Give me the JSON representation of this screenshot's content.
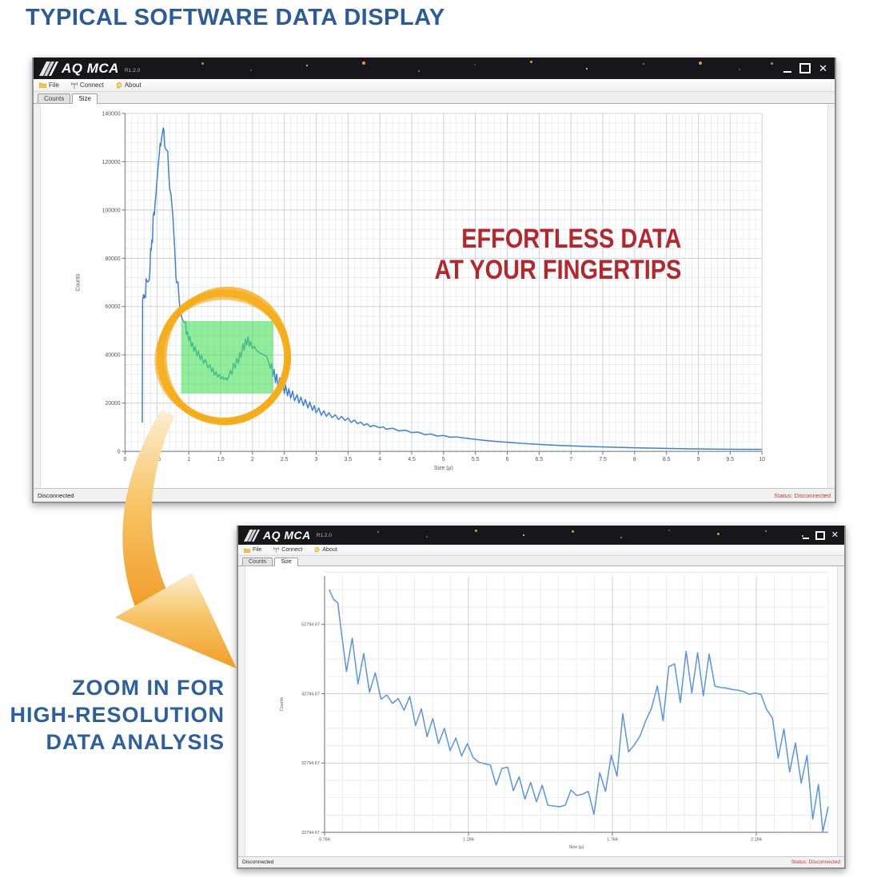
{
  "page": {
    "title": "TYPICAL SOFTWARE DATA DISPLAY",
    "title_color": "#2b5c99"
  },
  "annotations": {
    "slogan_line1": "EFFORTLESS DATA",
    "slogan_line2": "AT YOUR FINGERTIPS",
    "slogan_color": "#b3272d",
    "caption_line1": "ZOOM IN FOR",
    "caption_line2": "HIGH-RESOLUTION",
    "caption_line3": "DATA ANALYSIS",
    "caption_color": "#2d5f9e",
    "arrow_color": "#f09c26",
    "arrow_color_light": "#fcefd2",
    "status_color": "#c23a3a"
  },
  "window_main": {
    "app_name": "AQ MCA",
    "version": "R1.2.0",
    "menu": [
      {
        "label": "File"
      },
      {
        "label": "Connect"
      },
      {
        "label": "About"
      }
    ],
    "tabs": [
      {
        "label": "Counts"
      },
      {
        "label": "Size"
      }
    ],
    "status_left": "Disconnected",
    "status_right": "Status: Disconnected"
  },
  "window_zoom": {
    "app_name": "AQ MCA",
    "version": "R1.2.0",
    "menu": [
      {
        "label": "File"
      },
      {
        "label": "Connect"
      },
      {
        "label": "About"
      }
    ],
    "tabs": [
      {
        "label": "Counts"
      },
      {
        "label": "Size"
      }
    ],
    "status_left": "Disconnected",
    "status_right": "Status: Disconnected"
  },
  "chart_data": [
    {
      "id": "overview",
      "type": "line",
      "xlabel": "Size (μ)",
      "ylabel": "Counts",
      "xlim": [
        0,
        10
      ],
      "ylim": [
        0,
        140000
      ],
      "xtick_step": 0.5,
      "ytick_step": 20000,
      "x_minor": 0.1,
      "y_minor": 4000,
      "y_decimals": 0,
      "grid": true,
      "line_color": "#3f7fd4",
      "highlight_rect": {
        "x1": 0.88,
        "x2": 2.33,
        "y1": 24000,
        "y2": 54000,
        "color": "#4ee05e"
      },
      "circle": {
        "cx": 1.55,
        "cy": 39000,
        "rx": 1.0,
        "ry": 26500,
        "color": "#f6ac18"
      },
      "points": [
        [
          0.27,
          12000
        ],
        [
          0.275,
          63000
        ],
        [
          0.29,
          65000
        ],
        [
          0.3,
          63500
        ],
        [
          0.31,
          64500
        ],
        [
          0.32,
          63800
        ],
        [
          0.33,
          71500
        ],
        [
          0.34,
          70600
        ],
        [
          0.36,
          70200
        ],
        [
          0.38,
          71200
        ],
        [
          0.39,
          75000
        ],
        [
          0.4,
          84000
        ],
        [
          0.41,
          83200
        ],
        [
          0.42,
          87500
        ],
        [
          0.43,
          86500
        ],
        [
          0.44,
          97500
        ],
        [
          0.45,
          99000
        ],
        [
          0.46,
          98000
        ],
        [
          0.47,
          103000
        ],
        [
          0.48,
          105000
        ],
        [
          0.5,
          112000
        ],
        [
          0.52,
          118500
        ],
        [
          0.54,
          124000
        ],
        [
          0.55,
          127500
        ],
        [
          0.56,
          126500
        ],
        [
          0.57,
          129500
        ],
        [
          0.58,
          131000
        ],
        [
          0.6,
          134000
        ],
        [
          0.61,
          133000
        ],
        [
          0.62,
          127000
        ],
        [
          0.63,
          125500
        ],
        [
          0.65,
          124800
        ],
        [
          0.67,
          124200
        ],
        [
          0.68,
          118000
        ],
        [
          0.7,
          108500
        ],
        [
          0.72,
          106500
        ],
        [
          0.74,
          100500
        ],
        [
          0.75,
          97500
        ],
        [
          0.77,
          88000
        ],
        [
          0.78,
          83500
        ],
        [
          0.8,
          71500
        ],
        [
          0.81,
          69800
        ],
        [
          0.83,
          70200
        ],
        [
          0.85,
          62000
        ],
        [
          0.87,
          57500
        ],
        [
          0.9,
          54500
        ],
        [
          0.93,
          53500
        ],
        [
          0.95,
          53800
        ],
        [
          0.96,
          48500
        ],
        [
          0.98,
          49500
        ],
        [
          1.0,
          46000
        ],
        [
          1.02,
          47500
        ],
        [
          1.04,
          43500
        ],
        [
          1.06,
          45000
        ],
        [
          1.08,
          41500
        ],
        [
          1.1,
          43500
        ],
        [
          1.13,
          39500
        ],
        [
          1.15,
          41500
        ],
        [
          1.18,
          38000
        ],
        [
          1.2,
          40000
        ],
        [
          1.23,
          36500
        ],
        [
          1.26,
          38000
        ],
        [
          1.3,
          34500
        ],
        [
          1.33,
          36000
        ],
        [
          1.36,
          33000
        ],
        [
          1.38,
          34500
        ],
        [
          1.4,
          31500
        ],
        [
          1.43,
          33000
        ],
        [
          1.45,
          30800
        ],
        [
          1.48,
          32000
        ],
        [
          1.5,
          30000
        ],
        [
          1.53,
          31000
        ],
        [
          1.55,
          29800
        ],
        [
          1.58,
          30500
        ],
        [
          1.6,
          29500
        ],
        [
          1.63,
          31000
        ],
        [
          1.65,
          33500
        ],
        [
          1.68,
          32000
        ],
        [
          1.7,
          36500
        ],
        [
          1.73,
          34500
        ],
        [
          1.75,
          38500
        ],
        [
          1.78,
          36500
        ],
        [
          1.8,
          41000
        ],
        [
          1.82,
          39000
        ],
        [
          1.85,
          44500
        ],
        [
          1.87,
          42000
        ],
        [
          1.89,
          46500
        ],
        [
          1.91,
          44000
        ],
        [
          1.93,
          47500
        ],
        [
          1.95,
          43500
        ],
        [
          1.97,
          45500
        ],
        [
          2.0,
          42500
        ],
        [
          2.03,
          43500
        ],
        [
          2.06,
          42000
        ],
        [
          2.1,
          41000
        ],
        [
          2.14,
          40500
        ],
        [
          2.18,
          40000
        ],
        [
          2.22,
          39500
        ],
        [
          2.26,
          36500
        ],
        [
          2.28,
          34500
        ],
        [
          2.3,
          36500
        ],
        [
          2.32,
          31000
        ],
        [
          2.34,
          34000
        ],
        [
          2.36,
          28500
        ],
        [
          2.38,
          32000
        ],
        [
          2.4,
          26500
        ],
        [
          2.43,
          30500
        ],
        [
          2.45,
          25500
        ],
        [
          2.47,
          29000
        ],
        [
          2.5,
          24000
        ],
        [
          2.52,
          27500
        ],
        [
          2.55,
          23000
        ],
        [
          2.57,
          26000
        ],
        [
          2.6,
          22000
        ],
        [
          2.63,
          25000
        ],
        [
          2.66,
          21000
        ],
        [
          2.7,
          23500
        ],
        [
          2.73,
          20000
        ],
        [
          2.76,
          22500
        ],
        [
          2.8,
          19000
        ],
        [
          2.83,
          21500
        ],
        [
          2.87,
          18000
        ],
        [
          2.9,
          20500
        ],
        [
          2.94,
          17000
        ],
        [
          2.97,
          19000
        ],
        [
          3.0,
          16000
        ],
        [
          3.04,
          18000
        ],
        [
          3.08,
          15000
        ],
        [
          3.12,
          16800
        ],
        [
          3.16,
          14500
        ],
        [
          3.2,
          16000
        ],
        [
          3.25,
          14000
        ],
        [
          3.3,
          15200
        ],
        [
          3.35,
          13200
        ],
        [
          3.4,
          14500
        ],
        [
          3.45,
          12800
        ],
        [
          3.5,
          13800
        ],
        [
          3.55,
          12000
        ],
        [
          3.6,
          13000
        ],
        [
          3.65,
          11500
        ],
        [
          3.7,
          12200
        ],
        [
          3.75,
          10800
        ],
        [
          3.8,
          11500
        ],
        [
          3.85,
          10200
        ],
        [
          3.9,
          10800
        ],
        [
          4.0,
          9800
        ],
        [
          4.05,
          10200
        ],
        [
          4.1,
          9200
        ],
        [
          4.2,
          9600
        ],
        [
          4.3,
          8500
        ],
        [
          4.4,
          8800
        ],
        [
          4.5,
          7800
        ],
        [
          4.6,
          8000
        ],
        [
          4.7,
          7000
        ],
        [
          4.8,
          7200
        ],
        [
          4.9,
          6400
        ],
        [
          5.0,
          6600
        ],
        [
          5.1,
          5900
        ],
        [
          5.2,
          6000
        ],
        [
          5.4,
          5300
        ],
        [
          5.6,
          4700
        ],
        [
          5.8,
          4200
        ],
        [
          6.0,
          3800
        ],
        [
          6.2,
          3400
        ],
        [
          6.5,
          2900
        ],
        [
          6.8,
          2500
        ],
        [
          7.0,
          2300
        ],
        [
          7.3,
          2000
        ],
        [
          7.6,
          1800
        ],
        [
          8.0,
          1500
        ],
        [
          8.4,
          1300
        ],
        [
          8.8,
          1100
        ],
        [
          9.2,
          1000
        ],
        [
          9.6,
          900
        ],
        [
          10.0,
          850
        ]
      ]
    },
    {
      "id": "zoom",
      "type": "line",
      "xlabel": "Size (μ)",
      "ylabel": "Counts",
      "xlim": [
        0.784,
        2.534
      ],
      "ylim": [
        22794.67,
        59794.67
      ],
      "xticks": [
        0.784,
        1.284,
        1.784,
        2.284
      ],
      "yticks": [
        22794.67,
        32794.67,
        42794.67,
        52794.67
      ],
      "x_minor": 0.0625,
      "y_minor": 2500,
      "x_decimals": 3,
      "y_decimals": 2,
      "grid": true,
      "line_color": "#5a94de",
      "points": [
        [
          0.8,
          57800
        ],
        [
          0.815,
          56400
        ],
        [
          0.83,
          55900
        ],
        [
          0.84,
          52400
        ],
        [
          0.86,
          46000
        ],
        [
          0.88,
          50800
        ],
        [
          0.9,
          44200
        ],
        [
          0.92,
          48600
        ],
        [
          0.94,
          43000
        ],
        [
          0.96,
          45800
        ],
        [
          0.98,
          42000
        ],
        [
          1.0,
          42600
        ],
        [
          1.02,
          41400
        ],
        [
          1.04,
          42100
        ],
        [
          1.06,
          40400
        ],
        [
          1.08,
          42400
        ],
        [
          1.1,
          38200
        ],
        [
          1.12,
          40600
        ],
        [
          1.14,
          36600
        ],
        [
          1.16,
          39200
        ],
        [
          1.18,
          35600
        ],
        [
          1.2,
          37800
        ],
        [
          1.22,
          34600
        ],
        [
          1.24,
          36400
        ],
        [
          1.26,
          33800
        ],
        [
          1.28,
          35600
        ],
        [
          1.3,
          33600
        ],
        [
          1.32,
          32900
        ],
        [
          1.34,
          32700
        ],
        [
          1.36,
          32500
        ],
        [
          1.38,
          29600
        ],
        [
          1.4,
          32000
        ],
        [
          1.42,
          32200
        ],
        [
          1.44,
          28800
        ],
        [
          1.46,
          30800
        ],
        [
          1.48,
          27600
        ],
        [
          1.5,
          30000
        ],
        [
          1.52,
          27200
        ],
        [
          1.54,
          29600
        ],
        [
          1.56,
          26700
        ],
        [
          1.58,
          26600
        ],
        [
          1.6,
          26500
        ],
        [
          1.62,
          26700
        ],
        [
          1.64,
          28900
        ],
        [
          1.66,
          28100
        ],
        [
          1.68,
          28300
        ],
        [
          1.7,
          28700
        ],
        [
          1.72,
          25400
        ],
        [
          1.74,
          31400
        ],
        [
          1.76,
          28700
        ],
        [
          1.78,
          33900
        ],
        [
          1.8,
          30900
        ],
        [
          1.82,
          39900
        ],
        [
          1.84,
          34400
        ],
        [
          1.86,
          35400
        ],
        [
          1.88,
          36700
        ],
        [
          1.9,
          38900
        ],
        [
          1.92,
          40700
        ],
        [
          1.94,
          43900
        ],
        [
          1.96,
          38900
        ],
        [
          1.98,
          46700
        ],
        [
          2.0,
          47100
        ],
        [
          2.02,
          41500
        ],
        [
          2.04,
          48900
        ],
        [
          2.06,
          42900
        ],
        [
          2.08,
          48700
        ],
        [
          2.1,
          42500
        ],
        [
          2.12,
          48500
        ],
        [
          2.14,
          43900
        ],
        [
          2.16,
          43700
        ],
        [
          2.18,
          43600
        ],
        [
          2.2,
          43400
        ],
        [
          2.22,
          43300
        ],
        [
          2.24,
          43100
        ],
        [
          2.26,
          42700
        ],
        [
          2.28,
          42900
        ],
        [
          2.3,
          42700
        ],
        [
          2.32,
          40500
        ],
        [
          2.34,
          39300
        ],
        [
          2.36,
          33500
        ],
        [
          2.38,
          37700
        ],
        [
          2.4,
          31500
        ],
        [
          2.42,
          35700
        ],
        [
          2.44,
          29900
        ],
        [
          2.46,
          33900
        ],
        [
          2.48,
          24700
        ],
        [
          2.5,
          29700
        ],
        [
          2.515,
          22900
        ],
        [
          2.534,
          26500
        ]
      ]
    }
  ]
}
